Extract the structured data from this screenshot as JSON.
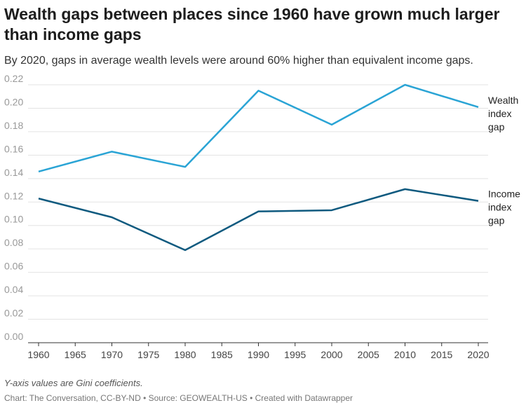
{
  "header": {
    "title": "Wealth gaps between places since 1960 have grown much larger than income gaps",
    "subtitle": "By 2020, gaps in average wealth levels were around 60% higher than equivalent income gaps."
  },
  "footer": {
    "note": "Y-axis values are Gini coefficients.",
    "source": "Chart: The Conversation, CC-BY-ND • Source: GEOWEALTH-US • Created with Datawrapper"
  },
  "chart_data": {
    "type": "line",
    "title": "Wealth gaps between places since 1960 have grown much larger than income gaps",
    "xlabel": "",
    "ylabel": "",
    "x": [
      1960,
      1970,
      1980,
      1990,
      2000,
      2010,
      2020
    ],
    "xticks": [
      "1960",
      "1965",
      "1970",
      "1975",
      "1980",
      "1985",
      "1990",
      "1995",
      "2000",
      "2005",
      "2010",
      "2015",
      "2020"
    ],
    "yticks": [
      "0.00",
      "0.02",
      "0.04",
      "0.06",
      "0.08",
      "0.10",
      "0.12",
      "0.14",
      "0.16",
      "0.18",
      "0.20",
      "0.22"
    ],
    "ylim": [
      0,
      0.22
    ],
    "xlim": [
      1960,
      2020
    ],
    "grid": true,
    "legend": "direct labels at right end of lines",
    "series": [
      {
        "name": "Wealth index gap",
        "label_lines": [
          "Wealth",
          "index",
          "gap"
        ],
        "color": "#2aa4d5",
        "values": [
          0.146,
          0.163,
          0.15,
          0.215,
          0.186,
          0.22,
          0.201
        ]
      },
      {
        "name": "Income index gap",
        "label_lines": [
          "Income",
          "index",
          "gap"
        ],
        "color": "#0f5a7f",
        "values": [
          0.123,
          0.107,
          0.079,
          0.112,
          0.113,
          0.131,
          0.121
        ]
      }
    ]
  }
}
